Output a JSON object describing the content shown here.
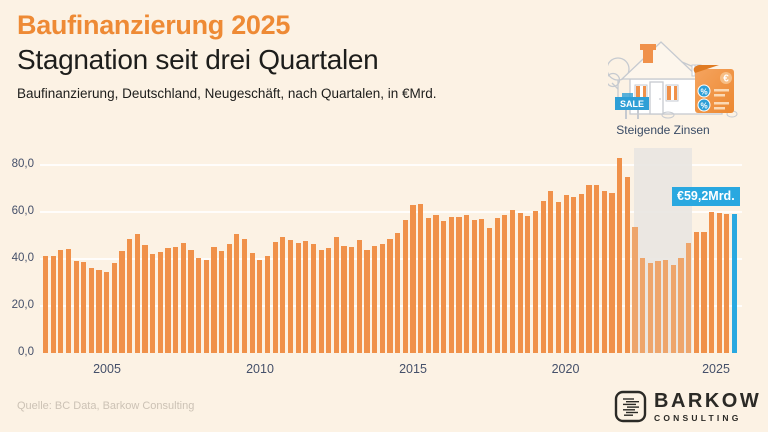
{
  "header": {
    "title": "Baufinanzierung 2025",
    "subtitle": "Stagnation seit drei Quartalen",
    "description": "Baufinanzierung, Deutschland, Neugeschäft, nach Quartalen, in €Mrd."
  },
  "annotations": {
    "rising_rates_label": "Steigende Zinsen",
    "callout_value": "€59,2Mrd.",
    "sale_sign": "SALE",
    "scroll_currency": "€",
    "scroll_percent": "%"
  },
  "chart_data": {
    "type": "bar",
    "title": "Baufinanzierung, Deutschland, Neugeschäft, nach Quartalen, in €Mrd.",
    "unit": "€Mrd.",
    "frequency": "quarterly",
    "period_start": "2003-Q1",
    "period_end": "2025-Q3",
    "values": [
      41.3,
      41.2,
      44.1,
      44.5,
      39.4,
      38.7,
      36.1,
      35.6,
      34.4,
      38.5,
      43.6,
      48.6,
      50.9,
      46.0,
      42.4,
      43.2,
      44.9,
      45.4,
      46.7,
      44.0,
      40.6,
      39.6,
      45.1,
      43.6,
      46.3,
      50.8,
      48.8,
      42.6,
      39.8,
      41.5,
      47.5,
      49.4,
      48.1,
      46.9,
      47.6,
      46.4,
      43.8,
      44.6,
      49.4,
      45.8,
      45.0,
      48.3,
      44.1,
      45.5,
      46.5,
      48.8,
      51.1,
      56.6,
      63.2,
      63.4,
      57.4,
      58.8,
      56.4,
      58.0,
      58.0,
      58.7,
      56.8,
      57.3,
      53.4,
      57.6,
      59.0,
      61.0,
      59.8,
      58.3,
      60.7,
      65.0,
      69.1,
      64.4,
      67.2,
      66.7,
      67.7,
      71.5,
      71.6,
      69.0,
      68.3,
      83.0,
      75.0,
      53.9,
      40.6,
      38.4,
      39.1,
      39.6,
      37.7,
      40.6,
      46.9,
      51.5,
      51.8,
      60.0,
      59.7,
      59.4,
      59.2
    ],
    "latest_value_label": "€59,2Mrd.",
    "highlight_last": true,
    "y_ticks": [
      {
        "label": "80,0",
        "value": 80
      },
      {
        "label": "60,0",
        "value": 60
      },
      {
        "label": "40,0",
        "value": 40
      },
      {
        "label": "20,0",
        "value": 20
      },
      {
        "label": "0,0",
        "value": 0
      }
    ],
    "ylim": [
      0,
      85
    ],
    "x_tick_labels": [
      "2005",
      "2010",
      "2015",
      "2020",
      "2025"
    ],
    "grid": true,
    "shaded_region": {
      "label": "Steigende Zinsen",
      "from_index": 77,
      "to_index": 84
    }
  },
  "footer": {
    "source": "Quelle: BC Data, Barkow Consulting",
    "logo_text": "BARKOW",
    "logo_subtext": "CONSULTING"
  },
  "colors": {
    "background": "#FCF2E4",
    "title_accent": "#EE8A35",
    "heading_text": "#1D1D1B",
    "bar": "#F0914A",
    "bar_muted": "#EEA56B",
    "highlight": "#29A8E0",
    "band": "#E9E5E1",
    "axis_text": "#45506A",
    "annotation_text": "#3A4C66",
    "source_text": "#CCC2B5",
    "logo_text": "#2B2A26",
    "illustration_stroke": "#C6CAD0",
    "sale_sign_blue": "#2E9FD6"
  }
}
